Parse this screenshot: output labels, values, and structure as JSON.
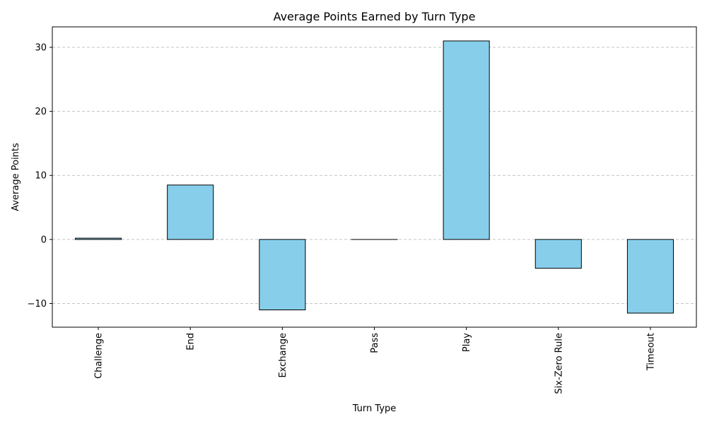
{
  "chart_data": {
    "type": "bar",
    "title": "Average Points Earned by Turn Type",
    "xlabel": "Turn Type",
    "ylabel": "Average Points",
    "categories": [
      "Challenge",
      "End",
      "Exchange",
      "Pass",
      "Play",
      "Six-Zero Rule",
      "Timeout"
    ],
    "values": [
      0.2,
      8.5,
      -11.0,
      0.0,
      31.0,
      -4.5,
      -11.5
    ],
    "ylim": [
      -13.7,
      33.2
    ],
    "yticks": [
      -10,
      0,
      10,
      20,
      30
    ],
    "grid": "y",
    "colors": {
      "bar": "#87ceeb",
      "edge": "#000000"
    }
  }
}
